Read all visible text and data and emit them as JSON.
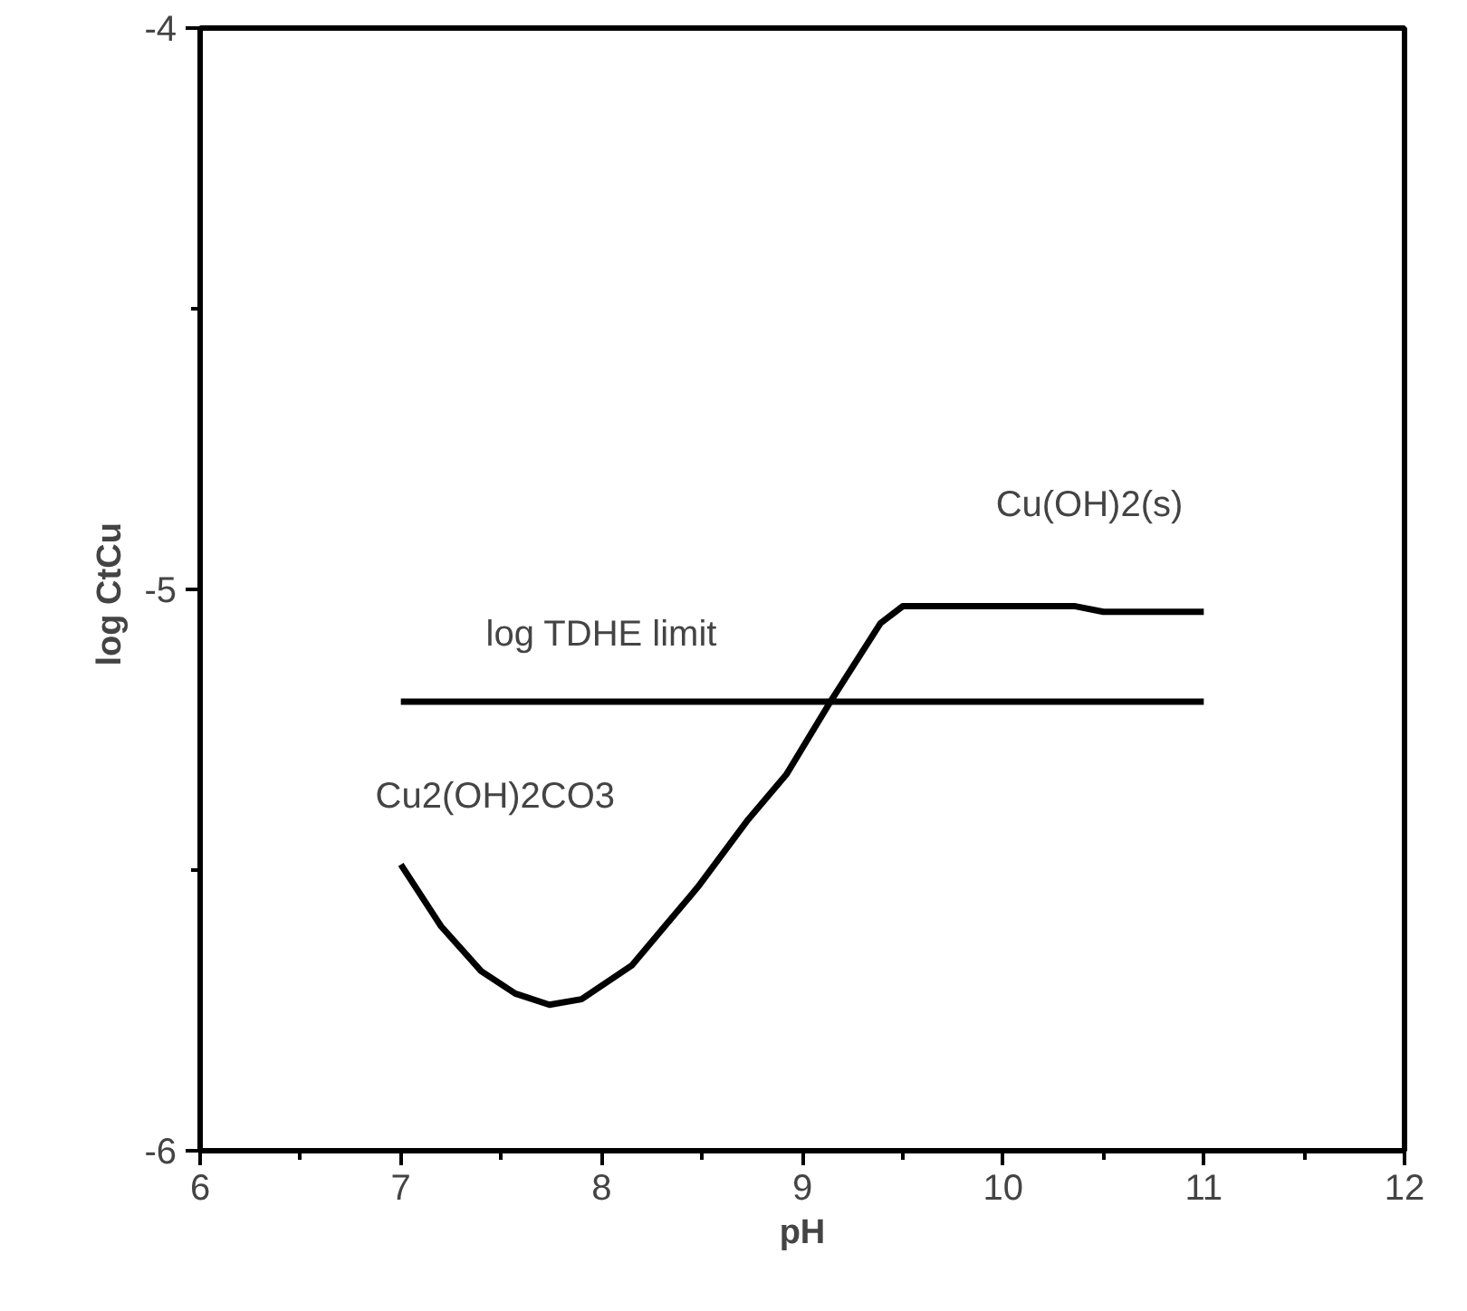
{
  "chart_data": {
    "type": "line",
    "xlabel": "pH",
    "ylabel": "log  CtCu",
    "xlim": [
      6,
      12
    ],
    "ylim": [
      -6,
      -4
    ],
    "xticks": [
      6,
      7,
      8,
      9,
      10,
      11,
      12
    ],
    "yticks": [
      -6,
      -5,
      -4
    ],
    "grid": false,
    "marker": "none",
    "line_style": "solid",
    "series": [
      {
        "color": "#000000",
        "x": [
          7.0,
          7.2,
          7.4,
          7.57,
          7.74,
          7.9,
          8.15,
          8.48,
          8.73,
          8.92,
          9.14,
          9.39,
          9.5,
          10.36,
          10.5,
          11.0
        ],
        "values": [
          -5.49,
          -5.6,
          -5.68,
          -5.72,
          -5.74,
          -5.73,
          -5.67,
          -5.53,
          -5.41,
          -5.33,
          -5.2,
          -5.06,
          -5.03,
          -5.03,
          -5.04,
          -5.04
        ]
      },
      {
        "color": "#000000",
        "x": [
          7,
          11
        ],
        "values": [
          -5.2,
          -5.2
        ]
      }
    ],
    "annotations": [
      "Cu(OH)2(s)",
      "log TDHE limit",
      "Cu2(OH)2CO3"
    ]
  }
}
